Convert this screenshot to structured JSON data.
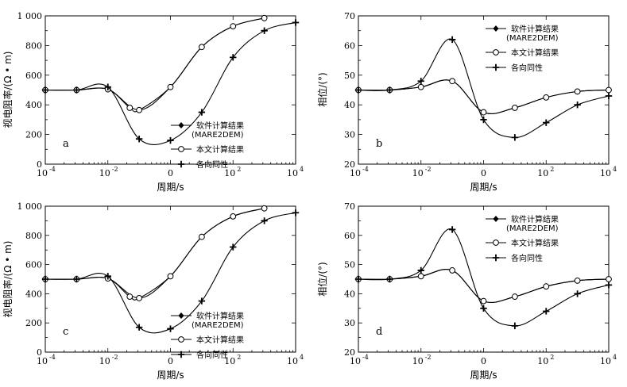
{
  "chart_data": [
    {
      "type": "line",
      "panel_label": "a",
      "xlabel": "周期/s",
      "ylabel": "视电阻率/(Ω • m)",
      "xscale": "log",
      "xlim": [
        0.0001,
        10000
      ],
      "ylim": [
        0,
        1000
      ],
      "yticks": [
        "0",
        "200",
        "400",
        "600",
        "800",
        "1 000"
      ],
      "xticks": [
        "10",
        "10",
        "0",
        "10",
        "10"
      ],
      "xtick_exps": [
        "-4",
        "-2",
        "",
        "2",
        "4"
      ],
      "legend_position": "right",
      "series": [
        {
          "name": "软件计算结果",
          "name2": "(MARE2DEM)",
          "marker": "diamond",
          "x": [
            0.0001,
            0.001,
            0.01,
            0.1,
            1,
            10,
            100,
            1000
          ],
          "y": [
            500,
            500,
            505,
            365,
            520,
            790,
            930,
            985
          ]
        },
        {
          "name": "本文计算结果",
          "marker": "circle",
          "x": [
            0.0001,
            0.001,
            0.01,
            0.05,
            0.1,
            1,
            10,
            100,
            1000
          ],
          "y": [
            500,
            500,
            505,
            380,
            365,
            520,
            790,
            930,
            985
          ]
        },
        {
          "name": "各向同性",
          "marker": "plus",
          "x": [
            0.0001,
            0.001,
            0.01,
            0.1,
            1,
            10,
            100,
            1000,
            10000
          ],
          "y": [
            500,
            500,
            520,
            170,
            160,
            350,
            720,
            900,
            955
          ]
        }
      ]
    },
    {
      "type": "line",
      "panel_label": "b",
      "xlabel": "周期/s",
      "ylabel": "相位/(°)",
      "xscale": "log",
      "xlim": [
        0.0001,
        10000
      ],
      "ylim": [
        20,
        70
      ],
      "yticks": [
        "20",
        "30",
        "40",
        "50",
        "60",
        "70"
      ],
      "xticks": [
        "10",
        "10",
        "0",
        "10",
        "10"
      ],
      "xtick_exps": [
        "-4",
        "-2",
        "",
        "2",
        "4"
      ],
      "legend_position": "top-right",
      "series": [
        {
          "name": "软件计算结果",
          "name2": "(MARE2DEM)",
          "marker": "diamond",
          "x": [
            0.0001,
            0.001,
            0.01,
            0.1,
            1,
            10,
            100,
            1000,
            10000
          ],
          "y": [
            45,
            45,
            46,
            48,
            37.5,
            39,
            42.5,
            44.5,
            45
          ]
        },
        {
          "name": "本文计算结果",
          "marker": "circle",
          "x": [
            0.0001,
            0.001,
            0.01,
            0.1,
            1,
            10,
            100,
            1000,
            10000
          ],
          "y": [
            45,
            45,
            46,
            48,
            37.5,
            39,
            42.5,
            44.5,
            45
          ]
        },
        {
          "name": "各向同性",
          "marker": "plus",
          "x": [
            0.0001,
            0.001,
            0.01,
            0.1,
            1,
            10,
            100,
            1000,
            10000
          ],
          "y": [
            45,
            45,
            48,
            62,
            35,
            29,
            34,
            40,
            43
          ]
        }
      ]
    },
    {
      "type": "line",
      "panel_label": "c",
      "xlabel": "周期/s",
      "ylabel": "视电阻率/(Ω • m)",
      "xscale": "log",
      "xlim": [
        0.0001,
        10000
      ],
      "ylim": [
        0,
        1000
      ],
      "yticks": [
        "0",
        "200",
        "400",
        "600",
        "800",
        "1 000"
      ],
      "xticks": [
        "10",
        "10",
        "0",
        "10",
        "10"
      ],
      "xtick_exps": [
        "-4",
        "-2",
        "",
        "2",
        "4"
      ],
      "legend_position": "right",
      "series": [
        {
          "name": "软件计算结果",
          "name2": "(MARE2DEM)",
          "marker": "diamond",
          "x": [
            0.0001,
            0.001,
            0.01,
            0.1,
            1,
            10,
            100,
            1000
          ],
          "y": [
            500,
            500,
            505,
            370,
            520,
            790,
            930,
            985
          ]
        },
        {
          "name": "本文计算结果",
          "marker": "circle",
          "x": [
            0.0001,
            0.001,
            0.01,
            0.05,
            0.1,
            1,
            10,
            100,
            1000
          ],
          "y": [
            500,
            500,
            505,
            380,
            370,
            520,
            790,
            930,
            985
          ]
        },
        {
          "name": "各向同性",
          "marker": "plus",
          "x": [
            0.0001,
            0.001,
            0.01,
            0.1,
            1,
            10,
            100,
            1000,
            10000
          ],
          "y": [
            500,
            500,
            520,
            170,
            160,
            350,
            720,
            900,
            955
          ]
        }
      ]
    },
    {
      "type": "line",
      "panel_label": "d",
      "xlabel": "周期/s",
      "ylabel": "相位/(°)",
      "xscale": "log",
      "xlim": [
        0.0001,
        10000
      ],
      "ylim": [
        20,
        70
      ],
      "yticks": [
        "20",
        "30",
        "40",
        "50",
        "60",
        "70"
      ],
      "xticks": [
        "10",
        "10",
        "0",
        "10",
        "10"
      ],
      "xtick_exps": [
        "-4",
        "-2",
        "",
        "2",
        "4"
      ],
      "legend_position": "top-right",
      "series": [
        {
          "name": "软件计算结果",
          "name2": "(MARE2DEM)",
          "marker": "diamond",
          "x": [
            0.0001,
            0.001,
            0.01,
            0.1,
            1,
            10,
            100,
            1000,
            10000
          ],
          "y": [
            45,
            45,
            46,
            48,
            37.5,
            39,
            42.5,
            44.5,
            45
          ]
        },
        {
          "name": "本文计算结果",
          "marker": "circle",
          "x": [
            0.0001,
            0.001,
            0.01,
            0.1,
            1,
            10,
            100,
            1000,
            10000
          ],
          "y": [
            45,
            45,
            46,
            48,
            37.5,
            39,
            42.5,
            44.5,
            45
          ]
        },
        {
          "name": "各向同性",
          "marker": "plus",
          "x": [
            0.0001,
            0.001,
            0.01,
            0.1,
            1,
            10,
            100,
            1000,
            10000
          ],
          "y": [
            45,
            45,
            48,
            62,
            35,
            29,
            34,
            40,
            43
          ]
        }
      ]
    }
  ]
}
